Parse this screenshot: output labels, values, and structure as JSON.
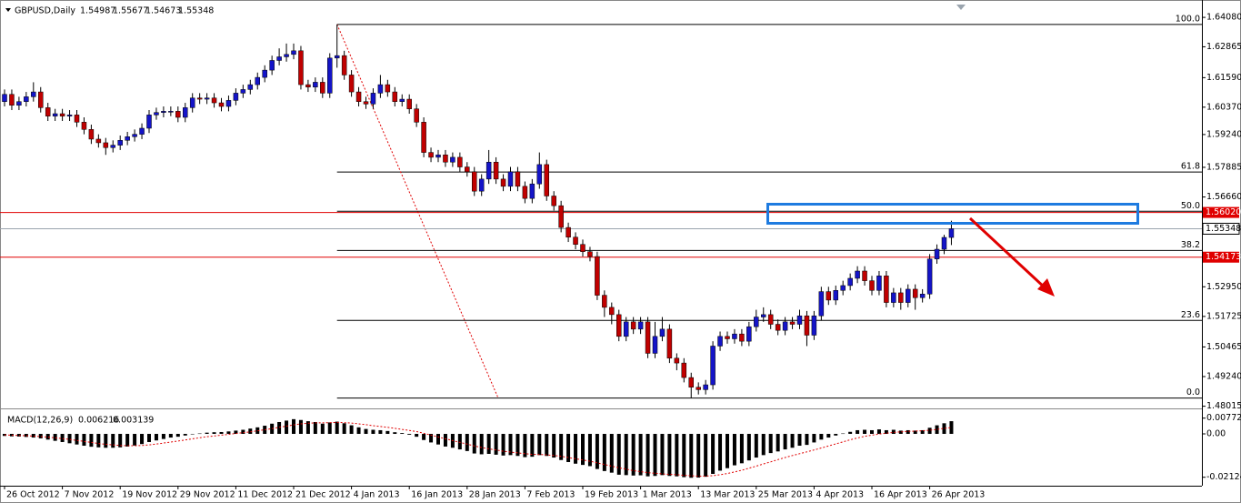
{
  "chart_data": {
    "type": "candlestick",
    "title": "GBPUSD,Daily",
    "up_color": "#1414c8",
    "down_color": "#c00000",
    "wick_color": "#000000",
    "open": [
      1.606,
      1.609,
      1.6045,
      1.606,
      1.608,
      1.61,
      1.6035,
      1.6,
      1.601,
      1.6,
      1.6005,
      1.5975,
      1.5945,
      1.5905,
      1.589,
      1.587,
      1.588,
      1.59,
      1.5915,
      1.5925,
      1.595,
      1.6005,
      1.6015,
      1.602,
      1.602,
      1.5995,
      1.6035,
      1.6075,
      1.607,
      1.6075,
      1.6055,
      1.604,
      1.6065,
      1.6095,
      1.611,
      1.613,
      1.616,
      1.619,
      1.623,
      1.6245,
      1.6255,
      1.627,
      1.613,
      1.612,
      1.614,
      1.6095,
      1.624,
      1.625,
      1.617,
      1.61,
      1.606,
      1.605,
      1.6095,
      1.613,
      1.61,
      1.606,
      1.607,
      1.603,
      1.5975,
      1.585,
      1.583,
      1.584,
      1.581,
      1.583,
      1.579,
      1.577,
      1.569,
      1.574,
      1.581,
      1.574,
      1.571,
      1.577,
      1.571,
      1.566,
      1.572,
      1.58,
      1.567,
      1.563,
      1.554,
      1.55,
      1.547,
      1.544,
      1.542,
      1.526,
      1.521,
      1.518,
      1.509,
      1.515,
      1.512,
      1.515,
      1.502,
      1.509,
      1.512,
      1.5,
      1.498,
      1.492,
      1.488,
      1.487,
      1.489,
      1.505,
      1.509,
      1.508,
      1.51,
      1.507,
      1.513,
      1.517,
      1.518,
      1.514,
      1.5115,
      1.515,
      1.514,
      1.5175,
      1.5095,
      1.5175,
      1.5275,
      1.524,
      1.528,
      1.53,
      1.533,
      1.536,
      1.532,
      1.528,
      1.534,
      1.523,
      1.527,
      1.523,
      1.5285,
      1.525,
      1.5265,
      1.541,
      1.545,
      1.54987
    ],
    "high": [
      1.611,
      1.611,
      1.608,
      1.61,
      1.614,
      1.612,
      1.6055,
      1.603,
      1.603,
      1.6025,
      1.6025,
      1.5995,
      1.5965,
      1.5925,
      1.591,
      1.59,
      1.592,
      1.5935,
      1.5945,
      1.597,
      1.6025,
      1.6035,
      1.604,
      1.604,
      1.604,
      1.6055,
      1.6095,
      1.6095,
      1.6095,
      1.6095,
      1.6075,
      1.6085,
      1.6115,
      1.613,
      1.615,
      1.618,
      1.621,
      1.625,
      1.628,
      1.63,
      1.63,
      1.629,
      1.615,
      1.616,
      1.616,
      1.626,
      1.6379,
      1.627,
      1.619,
      1.612,
      1.608,
      1.6115,
      1.617,
      1.615,
      1.612,
      1.609,
      1.609,
      1.605,
      1.5995,
      1.587,
      1.586,
      1.586,
      1.585,
      1.585,
      1.581,
      1.579,
      1.576,
      1.586,
      1.583,
      1.576,
      1.579,
      1.579,
      1.573,
      1.574,
      1.585,
      1.582,
      1.569,
      1.565,
      1.556,
      1.552,
      1.549,
      1.546,
      1.544,
      1.528,
      1.523,
      1.52,
      1.517,
      1.517,
      1.517,
      1.517,
      1.515,
      1.517,
      1.514,
      1.502,
      1.5,
      1.494,
      1.49,
      1.491,
      1.507,
      1.511,
      1.511,
      1.512,
      1.512,
      1.515,
      1.52,
      1.521,
      1.52,
      1.516,
      1.517,
      1.517,
      1.52,
      1.5195,
      1.5195,
      1.5295,
      1.5295,
      1.53,
      1.532,
      1.535,
      1.538,
      1.538,
      1.534,
      1.536,
      1.536,
      1.529,
      1.529,
      1.5305,
      1.5305,
      1.5285,
      1.543,
      1.547,
      1.551,
      1.55677
    ],
    "low": [
      1.604,
      1.6025,
      1.6025,
      1.604,
      1.606,
      1.6015,
      1.598,
      1.598,
      1.598,
      1.598,
      1.5955,
      1.5925,
      1.5885,
      1.587,
      1.584,
      1.585,
      1.586,
      1.588,
      1.5895,
      1.5905,
      1.593,
      1.5985,
      1.5995,
      1.6,
      1.5975,
      1.5975,
      1.6015,
      1.605,
      1.605,
      1.6035,
      1.602,
      1.602,
      1.6045,
      1.6075,
      1.609,
      1.611,
      1.614,
      1.617,
      1.621,
      1.6225,
      1.6235,
      1.611,
      1.61,
      1.61,
      1.6075,
      1.6075,
      1.62,
      1.615,
      1.608,
      1.604,
      1.603,
      1.603,
      1.6075,
      1.608,
      1.604,
      1.604,
      1.601,
      1.5955,
      1.583,
      1.581,
      1.581,
      1.579,
      1.579,
      1.577,
      1.575,
      1.567,
      1.567,
      1.572,
      1.572,
      1.569,
      1.569,
      1.569,
      1.564,
      1.564,
      1.57,
      1.565,
      1.561,
      1.552,
      1.548,
      1.545,
      1.542,
      1.54,
      1.524,
      1.517,
      1.514,
      1.507,
      1.507,
      1.51,
      1.51,
      1.5,
      1.5,
      1.507,
      1.498,
      1.495,
      1.49,
      1.4835,
      1.485,
      1.485,
      1.487,
      1.503,
      1.506,
      1.506,
      1.505,
      1.505,
      1.511,
      1.515,
      1.512,
      1.5095,
      1.5095,
      1.512,
      1.512,
      1.505,
      1.5075,
      1.5155,
      1.522,
      1.522,
      1.526,
      1.528,
      1.531,
      1.53,
      1.526,
      1.526,
      1.521,
      1.521,
      1.52,
      1.521,
      1.52,
      1.523,
      1.5245,
      1.539,
      1.543,
      1.54673
    ],
    "close": [
      1.609,
      1.6045,
      1.606,
      1.608,
      1.61,
      1.6035,
      1.6,
      1.601,
      1.6,
      1.6005,
      1.5975,
      1.5945,
      1.5905,
      1.589,
      1.587,
      1.588,
      1.59,
      1.5915,
      1.5925,
      1.595,
      1.6005,
      1.6015,
      1.602,
      1.602,
      1.5995,
      1.6035,
      1.6075,
      1.607,
      1.6075,
      1.6055,
      1.604,
      1.6065,
      1.6095,
      1.611,
      1.613,
      1.616,
      1.619,
      1.623,
      1.6245,
      1.6255,
      1.627,
      1.613,
      1.612,
      1.614,
      1.6095,
      1.624,
      1.625,
      1.617,
      1.61,
      1.606,
      1.605,
      1.6095,
      1.613,
      1.61,
      1.606,
      1.607,
      1.603,
      1.5975,
      1.585,
      1.583,
      1.584,
      1.581,
      1.583,
      1.579,
      1.577,
      1.569,
      1.574,
      1.581,
      1.574,
      1.571,
      1.577,
      1.571,
      1.566,
      1.572,
      1.58,
      1.567,
      1.563,
      1.554,
      1.55,
      1.547,
      1.544,
      1.542,
      1.526,
      1.521,
      1.518,
      1.509,
      1.515,
      1.512,
      1.515,
      1.502,
      1.509,
      1.512,
      1.5,
      1.498,
      1.492,
      1.488,
      1.487,
      1.489,
      1.505,
      1.509,
      1.508,
      1.51,
      1.507,
      1.513,
      1.517,
      1.518,
      1.514,
      1.5115,
      1.515,
      1.514,
      1.5175,
      1.5095,
      1.5175,
      1.5275,
      1.524,
      1.528,
      1.53,
      1.533,
      1.536,
      1.532,
      1.528,
      1.534,
      1.523,
      1.527,
      1.523,
      1.5285,
      1.525,
      1.5265,
      1.541,
      1.545,
      1.5499,
      1.55348
    ],
    "ylim": [
      1.48,
      1.6461
    ],
    "yticks": [
      {
        "value": 1.6408,
        "label": "1.64080"
      },
      {
        "value": 1.62865,
        "label": "1.62865"
      },
      {
        "value": 1.6159,
        "label": "1.61590"
      },
      {
        "value": 1.6037,
        "label": "1.60370"
      },
      {
        "value": 1.5924,
        "label": "1.59240"
      },
      {
        "value": 1.57885,
        "label": "1.57885"
      },
      {
        "value": 1.5666,
        "label": "1.56660"
      },
      {
        "value": 1.5295,
        "label": "1.52950"
      },
      {
        "value": 1.51725,
        "label": "1.51725"
      },
      {
        "value": 1.50465,
        "label": "1.50465"
      },
      {
        "value": 1.4924,
        "label": "1.49240"
      },
      {
        "value": 1.48015,
        "label": "1.48015"
      }
    ],
    "current_price_color": "#9aa4ae",
    "hlines": [
      {
        "value": 1.5602,
        "label": "1.56020"
      },
      {
        "value": 1.54173,
        "label": "1.54173"
      }
    ],
    "hline_color": "#e00000",
    "fibonacci": {
      "color": "#000000",
      "trend_color": "#e00000",
      "levels": [
        {
          "value": 1.6379,
          "label": "100.0"
        },
        {
          "value": 1.5769,
          "label": "61.8"
        },
        {
          "value": 1.5607,
          "label": "50.0"
        },
        {
          "value": 1.5445,
          "label": "38.2"
        },
        {
          "value": 1.5156,
          "label": "23.6"
        },
        {
          "value": 1.4835,
          "label": "0.0"
        }
      ]
    },
    "xticks": [
      {
        "value": 0,
        "label": "26 Oct 2012"
      },
      {
        "value": 8,
        "label": "7 Nov 2012"
      },
      {
        "value": 16,
        "label": "19 Nov 2012"
      },
      {
        "value": 24,
        "label": "29 Nov 2012"
      },
      {
        "value": 32,
        "label": "11 Dec 2012"
      },
      {
        "value": 40,
        "label": "21 Dec 2012"
      },
      {
        "value": 48,
        "label": "4 Jan 2013"
      },
      {
        "value": 56,
        "label": "16 Jan 2013"
      },
      {
        "value": 64,
        "label": "28 Jan 2013"
      },
      {
        "value": 72,
        "label": "7 Feb 2013"
      },
      {
        "value": 80,
        "label": "19 Feb 2013"
      },
      {
        "value": 88,
        "label": "1 Mar 2013"
      },
      {
        "value": 96,
        "label": "13 Mar 2013"
      },
      {
        "value": 104,
        "label": "25 Mar 2013"
      },
      {
        "value": 112,
        "label": "4 Apr 2013"
      },
      {
        "value": 120,
        "label": "16 Apr 2013"
      },
      {
        "value": 128,
        "label": "26 Apr 2013"
      }
    ],
    "macd": {
      "label": "MACD(12,26,9)",
      "hist_color": "#000000",
      "signal_color": "#e00000",
      "ylim": [
        -0.0245,
        0.01025
      ],
      "yticks": [
        0.007721,
        {
          "value": 0,
          "label": "0.00"
        },
        -0.02124
      ],
      "histogram": [
        -0.001,
        -0.0012,
        -0.0013,
        -0.0015,
        -0.0018,
        -0.0022,
        -0.0028,
        -0.0034,
        -0.004,
        -0.0046,
        -0.0052,
        -0.0058,
        -0.0063,
        -0.0066,
        -0.0068,
        -0.0068,
        -0.0066,
        -0.0062,
        -0.0057,
        -0.005,
        -0.004,
        -0.0032,
        -0.0025,
        -0.0018,
        -0.0014,
        -0.0008,
        -0.0002,
        0.0002,
        0.0006,
        0.0008,
        0.0009,
        0.0012,
        0.0016,
        0.002,
        0.0026,
        0.0032,
        0.004,
        0.005,
        0.0058,
        0.0065,
        0.0072,
        0.0068,
        0.0062,
        0.0058,
        0.005,
        0.0056,
        0.006,
        0.0052,
        0.0042,
        0.0032,
        0.0024,
        0.002,
        0.0018,
        0.0014,
        0.0008,
        0.0004,
        -0.0004,
        -0.0014,
        -0.003,
        -0.0042,
        -0.0052,
        -0.0062,
        -0.0068,
        -0.0076,
        -0.0084,
        -0.0096,
        -0.01,
        -0.0098,
        -0.0102,
        -0.0106,
        -0.0104,
        -0.0108,
        -0.0114,
        -0.0112,
        -0.0104,
        -0.0108,
        -0.0116,
        -0.0128,
        -0.0138,
        -0.0146,
        -0.0152,
        -0.0158,
        -0.0172,
        -0.0182,
        -0.019,
        -0.02,
        -0.0202,
        -0.0204,
        -0.0203,
        -0.0208,
        -0.0206,
        -0.0202,
        -0.0206,
        -0.0208,
        -0.0212,
        -0.0215,
        -0.0214,
        -0.021,
        -0.0196,
        -0.018,
        -0.0168,
        -0.0154,
        -0.0144,
        -0.013,
        -0.0116,
        -0.0104,
        -0.0094,
        -0.0086,
        -0.0076,
        -0.0068,
        -0.0058,
        -0.0054,
        -0.0042,
        -0.0028,
        -0.0018,
        -0.0008,
        0.0002,
        0.001,
        0.0018,
        0.002,
        0.0018,
        0.0022,
        0.0018,
        0.002,
        0.0016,
        0.0018,
        0.0016,
        0.0018,
        0.003,
        0.0042,
        0.0052,
        0.006216
      ],
      "signal": [
        -0.0005,
        -0.0006,
        -0.0008,
        -0.0009,
        -0.0011,
        -0.0013,
        -0.0016,
        -0.0019,
        -0.0023,
        -0.0027,
        -0.0032,
        -0.0037,
        -0.0042,
        -0.0047,
        -0.0051,
        -0.0054,
        -0.0057,
        -0.0058,
        -0.0058,
        -0.0057,
        -0.0054,
        -0.005,
        -0.0045,
        -0.004,
        -0.0035,
        -0.003,
        -0.0024,
        -0.0019,
        -0.0014,
        -0.001,
        -0.0006,
        -0.0002,
        0.0002,
        0.0006,
        0.001,
        0.0015,
        0.002,
        0.0026,
        0.0032,
        0.0038,
        0.0044,
        0.0049,
        0.0052,
        0.0054,
        0.0054,
        0.0055,
        0.0056,
        0.0055,
        0.0053,
        0.0049,
        0.0045,
        0.004,
        0.0036,
        0.0032,
        0.0027,
        0.0022,
        0.0017,
        0.0011,
        0.0003,
        -0.0006,
        -0.0015,
        -0.0024,
        -0.0033,
        -0.0042,
        -0.005,
        -0.0059,
        -0.0067,
        -0.0073,
        -0.0079,
        -0.0085,
        -0.0089,
        -0.0093,
        -0.0097,
        -0.01,
        -0.0101,
        -0.0103,
        -0.0106,
        -0.011,
        -0.0116,
        -0.0122,
        -0.0128,
        -0.0134,
        -0.0142,
        -0.015,
        -0.0158,
        -0.0166,
        -0.0173,
        -0.018,
        -0.0185,
        -0.019,
        -0.0193,
        -0.0196,
        -0.0198,
        -0.02,
        -0.0203,
        -0.0205,
        -0.0207,
        -0.0207,
        -0.0205,
        -0.02,
        -0.0194,
        -0.0186,
        -0.0178,
        -0.0168,
        -0.0158,
        -0.0147,
        -0.0137,
        -0.0126,
        -0.0116,
        -0.0106,
        -0.0097,
        -0.0088,
        -0.0079,
        -0.0069,
        -0.0059,
        -0.0049,
        -0.0039,
        -0.0029,
        -0.002,
        -0.0012,
        -0.0006,
        -0.0001,
        0.0003,
        0.0007,
        0.001,
        0.0012,
        0.0014,
        0.0015,
        0.0018,
        0.0022,
        0.0027,
        0.003139
      ]
    }
  }
}
